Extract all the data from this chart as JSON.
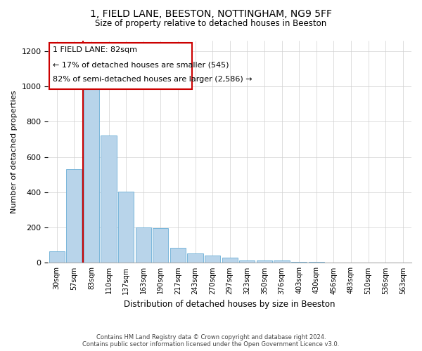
{
  "title": "1, FIELD LANE, BEESTON, NOTTINGHAM, NG9 5FF",
  "subtitle": "Size of property relative to detached houses in Beeston",
  "xlabel": "Distribution of detached houses by size in Beeston",
  "ylabel": "Number of detached properties",
  "footer_line1": "Contains HM Land Registry data © Crown copyright and database right 2024.",
  "footer_line2": "Contains public sector information licensed under the Open Government Licence v3.0.",
  "bar_color": "#b8d4ea",
  "bar_edge_color": "#6aaed6",
  "annotation_box_edge_color": "#cc0000",
  "vline_color": "#cc0000",
  "annotation_text_line1": "1 FIELD LANE: 82sqm",
  "annotation_text_line2": "← 17% of detached houses are smaller (545)",
  "annotation_text_line3": "82% of semi-detached houses are larger (2,586) →",
  "categories": [
    "30sqm",
    "57sqm",
    "83sqm",
    "110sqm",
    "137sqm",
    "163sqm",
    "190sqm",
    "217sqm",
    "243sqm",
    "270sqm",
    "297sqm",
    "323sqm",
    "350sqm",
    "376sqm",
    "403sqm",
    "430sqm",
    "456sqm",
    "483sqm",
    "510sqm",
    "536sqm",
    "563sqm"
  ],
  "values": [
    65,
    530,
    1000,
    720,
    405,
    200,
    195,
    85,
    55,
    40,
    30,
    15,
    15,
    15,
    5,
    5,
    3,
    3,
    3,
    1,
    3
  ],
  "ylim": [
    0,
    1260
  ],
  "yticks": [
    0,
    200,
    400,
    600,
    800,
    1000,
    1200
  ],
  "background_color": "#ffffff",
  "grid_color": "#d0d0d0"
}
